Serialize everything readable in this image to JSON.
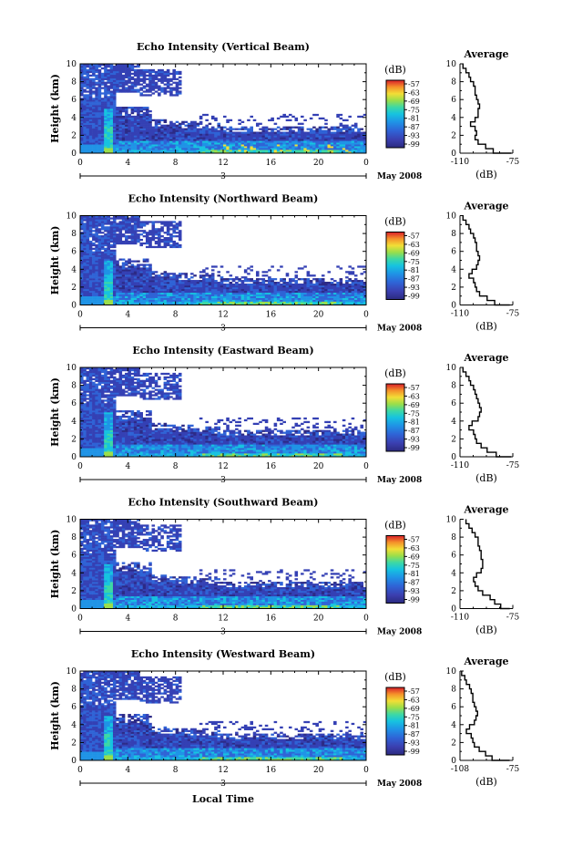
{
  "common": {
    "y_ticks": [
      "0",
      "2",
      "4",
      "6",
      "8",
      "10"
    ],
    "x_ticks": [
      "0",
      "4",
      "8",
      "12",
      "16",
      "20",
      "0"
    ],
    "y_label": "Height (km)",
    "date_marker": "3",
    "month_label": "May 2008",
    "x_label": "Local Time",
    "colorbar_unit": "(dB)",
    "colorbar_ticks": [
      "-57",
      "-63",
      "-69",
      "-75",
      "-81",
      "-87",
      "-93",
      "-99"
    ],
    "profile_title": "Average",
    "profile_unit": "(dB)",
    "colors": [
      "#3b2e8f",
      "#2f57c8",
      "#1e88e5",
      "#12b5e0",
      "#2fd4b0",
      "#8bdc4f",
      "#f0e03a",
      "#f7a12b",
      "#e8452a",
      "#c8102e"
    ]
  },
  "panels": [
    {
      "title": "Echo Intensity (Vertical Beam)",
      "profile_xticks": [
        "-110",
        "-75"
      ]
    },
    {
      "title": "Echo Intensity (Northward Beam)",
      "profile_xticks": [
        "-110",
        "-75"
      ]
    },
    {
      "title": "Echo Intensity (Eastward Beam)",
      "profile_xticks": [
        "-110",
        "-75"
      ]
    },
    {
      "title": "Echo Intensity (Southward Beam)",
      "profile_xticks": [
        "-110",
        "-75"
      ]
    },
    {
      "title": "Echo Intensity (Westward Beam)",
      "profile_xticks": [
        "-108",
        "-75"
      ]
    }
  ],
  "chart_data": [
    {
      "type": "heatmap",
      "title": "Echo Intensity (Vertical Beam)",
      "xlabel": "",
      "ylabel": "Height (km)",
      "xlim": [
        0,
        24
      ],
      "ylim": [
        0,
        10
      ],
      "colorbar": {
        "label": "(dB)",
        "ticks": [
          -57,
          -63,
          -69,
          -75,
          -81,
          -87,
          -93,
          -99
        ]
      },
      "profile": {
        "type": "line",
        "title": "Average",
        "xlabel": "(dB)",
        "xlim": [
          -110,
          -75
        ],
        "ylim": [
          0,
          10
        ],
        "height": [
          0,
          0.5,
          1,
          1.5,
          2,
          2.5,
          3,
          3.5,
          4,
          4.5,
          5,
          5.5,
          6,
          6.5,
          7,
          7.5,
          8,
          8.5,
          9,
          9.5,
          10
        ],
        "intensity": [
          -76,
          -88,
          -93,
          -98,
          -100,
          -99,
          -100,
          -103,
          -100,
          -98,
          -98,
          -97,
          -98,
          -99,
          -100,
          -100,
          -101,
          -103,
          -104,
          -106,
          -108
        ]
      }
    },
    {
      "type": "heatmap",
      "title": "Echo Intensity (Northward Beam)",
      "xlabel": "",
      "ylabel": "Height (km)",
      "xlim": [
        0,
        24
      ],
      "ylim": [
        0,
        10
      ],
      "colorbar": {
        "label": "(dB)",
        "ticks": [
          -57,
          -63,
          -69,
          -75,
          -81,
          -87,
          -93,
          -99
        ]
      },
      "profile": {
        "type": "line",
        "title": "Average",
        "xlabel": "(dB)",
        "xlim": [
          -110,
          -75
        ],
        "ylim": [
          0,
          10
        ],
        "height": [
          0,
          0.5,
          1,
          1.5,
          2,
          2.5,
          3,
          3.5,
          4,
          4.5,
          5,
          5.5,
          6,
          6.5,
          7,
          7.5,
          8,
          8.5,
          9,
          9.5,
          10
        ],
        "intensity": [
          -77,
          -87,
          -92,
          -97,
          -99,
          -100,
          -101,
          -104,
          -102,
          -99,
          -98,
          -97,
          -98,
          -99,
          -99,
          -100,
          -101,
          -103,
          -104,
          -106,
          -108
        ]
      }
    },
    {
      "type": "heatmap",
      "title": "Echo Intensity (Eastward Beam)",
      "xlabel": "",
      "ylabel": "Height (km)",
      "xlim": [
        0,
        24
      ],
      "ylim": [
        0,
        10
      ],
      "colorbar": {
        "label": "(dB)",
        "ticks": [
          -57,
          -63,
          -69,
          -75,
          -81,
          -87,
          -93,
          -99
        ]
      },
      "profile": {
        "type": "line",
        "title": "Average",
        "xlabel": "(dB)",
        "xlim": [
          -110,
          -75
        ],
        "ylim": [
          0,
          10
        ],
        "height": [
          0,
          0.5,
          1,
          1.5,
          2,
          2.5,
          3,
          3.5,
          4,
          4.5,
          5,
          5.5,
          6,
          6.5,
          7,
          7.5,
          8,
          8.5,
          9,
          9.5,
          10
        ],
        "intensity": [
          -76,
          -86,
          -92,
          -96,
          -99,
          -100,
          -101,
          -104,
          -102,
          -98,
          -97,
          -96,
          -97,
          -98,
          -99,
          -100,
          -101,
          -103,
          -104,
          -106,
          -108
        ]
      }
    },
    {
      "type": "heatmap",
      "title": "Echo Intensity (Southward Beam)",
      "xlabel": "",
      "ylabel": "Height (km)",
      "xlim": [
        0,
        24
      ],
      "ylim": [
        0,
        10
      ],
      "colorbar": {
        "label": "(dB)",
        "ticks": [
          -57,
          -63,
          -69,
          -75,
          -81,
          -87,
          -93,
          -99
        ]
      },
      "profile": {
        "type": "line",
        "title": "Average",
        "xlabel": "(dB)",
        "xlim": [
          -110,
          -75
        ],
        "ylim": [
          0,
          10
        ],
        "height": [
          0,
          0.5,
          1,
          1.5,
          2,
          2.5,
          3,
          3.5,
          4,
          4.5,
          5,
          5.5,
          6,
          6.5,
          7,
          7.5,
          8,
          8.5,
          9,
          9.5,
          10
        ],
        "intensity": [
          -77,
          -83,
          -87,
          -90,
          -95,
          -98,
          -100,
          -101,
          -99,
          -96,
          -95,
          -95,
          -96,
          -96,
          -97,
          -98,
          -98,
          -100,
          -102,
          -104,
          -106
        ]
      }
    },
    {
      "type": "heatmap",
      "title": "Echo Intensity (Westward Beam)",
      "xlabel": "Local Time",
      "ylabel": "Height (km)",
      "xlim": [
        0,
        24
      ],
      "ylim": [
        0,
        10
      ],
      "colorbar": {
        "label": "(dB)",
        "ticks": [
          -57,
          -63,
          -69,
          -75,
          -81,
          -87,
          -93,
          -99
        ]
      },
      "profile": {
        "type": "line",
        "title": "Average",
        "xlabel": "(dB)",
        "xlim": [
          -108,
          -75
        ],
        "ylim": [
          0,
          10
        ],
        "height": [
          0,
          0.5,
          1,
          1.5,
          2,
          2.5,
          3,
          3.5,
          4,
          4.5,
          5,
          5.5,
          6,
          6.5,
          7,
          7.5,
          8,
          8.5,
          9,
          9.5,
          10
        ],
        "intensity": [
          -77,
          -88,
          -92,
          -96,
          -99,
          -100,
          -101,
          -104,
          -102,
          -99,
          -98,
          -97,
          -98,
          -99,
          -100,
          -100,
          -101,
          -102,
          -104,
          -105,
          -107
        ]
      }
    }
  ]
}
